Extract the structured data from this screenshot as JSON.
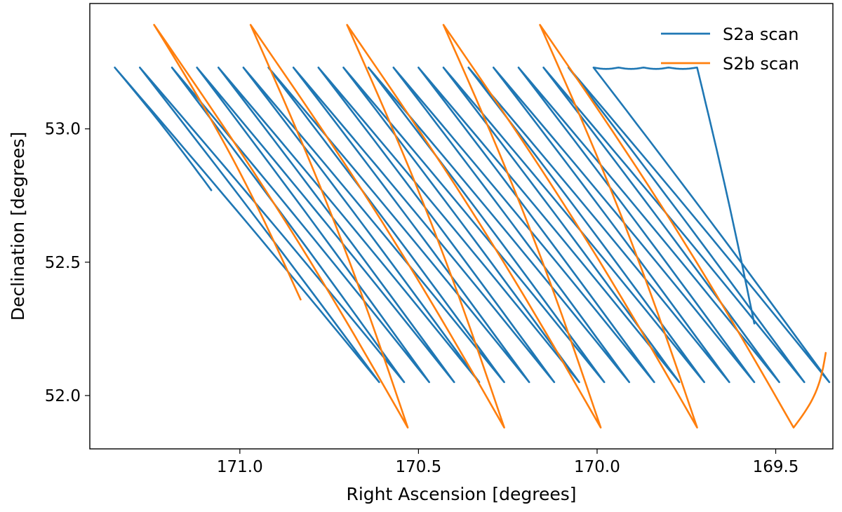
{
  "chart_data": {
    "type": "line",
    "title": "",
    "xlabel": "Right Ascension [degrees]",
    "ylabel": "Declination [degrees]",
    "xlim": [
      171.42,
      169.34
    ],
    "ylim": [
      51.8,
      53.47
    ],
    "x_inverted": true,
    "xticks": [
      171.0,
      170.5,
      170.0,
      169.5
    ],
    "xtick_labels": [
      "171.0",
      "170.5",
      "170.0",
      "169.5"
    ],
    "yticks": [
      52.0,
      52.5,
      53.0
    ],
    "ytick_labels": [
      "52.0",
      "52.5",
      "53.0"
    ],
    "grid": false,
    "legend_position": "top-right",
    "series": [
      {
        "name": "S2a scan",
        "color": "#1f77b4",
        "start": [
          171.08,
          52.77
        ],
        "top_turns_ra": [
          171.35,
          171.28,
          171.19,
          171.12,
          171.06,
          170.99,
          170.92,
          170.85,
          170.78,
          170.71,
          170.64,
          170.57,
          170.5,
          170.43,
          170.36,
          170.29,
          170.22,
          170.15,
          170.08,
          170.01,
          169.94,
          169.87,
          169.8,
          169.72
        ],
        "bottom_turns_ra": [
          170.61,
          170.54,
          170.47,
          170.4,
          170.33,
          170.26,
          170.19,
          170.12,
          170.05,
          169.98,
          169.91,
          169.84,
          169.77,
          169.7,
          169.63,
          169.56,
          169.49,
          169.42,
          169.35
        ],
        "top_dec": 53.23,
        "bottom_dec": 52.05,
        "end": [
          169.56,
          52.27
        ]
      },
      {
        "name": "S2b scan",
        "color": "#ff7f0e",
        "start": [
          170.83,
          52.36
        ],
        "top_turns_ra": [
          171.24,
          170.97,
          170.7,
          170.43,
          170.16
        ],
        "bottom_turns_ra": [
          170.53,
          170.26,
          169.99,
          169.72,
          169.45
        ],
        "top_dec": 53.39,
        "bottom_dec": 51.88,
        "end": [
          169.36,
          52.16
        ]
      }
    ]
  }
}
